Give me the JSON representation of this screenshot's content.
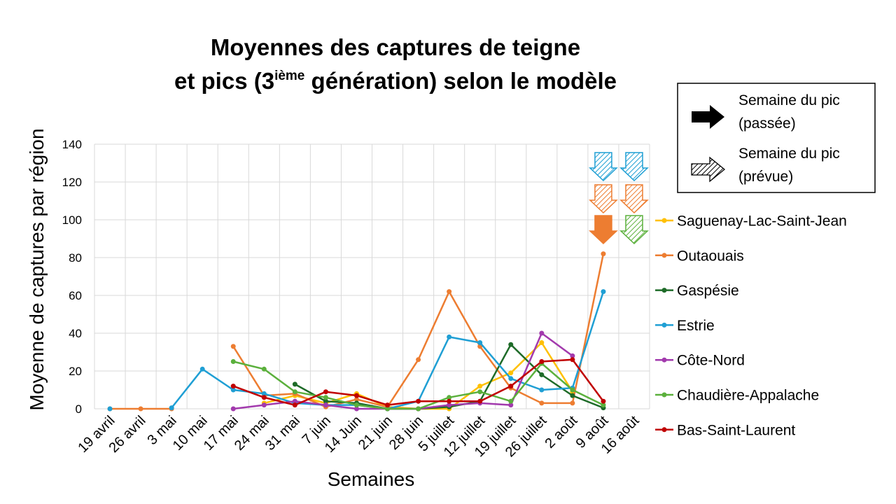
{
  "chart_data": {
    "type": "line",
    "title_line1": "Moyennes des captures de teigne",
    "title_line2_pre": "et pics (3",
    "title_line2_sup": "ième",
    "title_line2_post": " génération) selon le modèle",
    "xlabel": "Semaines",
    "ylabel": "Moyenne de captures par région",
    "ylim": [
      0,
      140
    ],
    "yticks": [
      0,
      20,
      40,
      60,
      80,
      100,
      120,
      140
    ],
    "grid": true,
    "categories": [
      "19 avril",
      "26 avril",
      "3 mai",
      "10 mai",
      "17 mai",
      "24 mai",
      "31 mai",
      "7 juin",
      "14 Juin",
      "21 juin",
      "28 juin",
      "5 juillet",
      "12 juillet",
      "19 juillet",
      "26 juillet",
      "2 août",
      "9 août",
      "16 août"
    ],
    "series": [
      {
        "name": "Saguenay-Lac-Saint-Jean",
        "color": "#FFC000",
        "values": [
          null,
          null,
          null,
          null,
          null,
          3,
          7,
          3,
          8,
          1,
          0,
          0,
          12,
          19,
          35,
          9,
          null,
          null
        ]
      },
      {
        "name": "Outaouais",
        "color": "#ED7D31",
        "values": [
          0,
          0,
          0,
          null,
          33,
          7,
          8,
          1,
          5,
          1,
          26,
          62,
          33,
          11,
          3,
          3,
          82,
          null
        ]
      },
      {
        "name": "Gaspésie",
        "color": "#1E6B28",
        "values": [
          null,
          null,
          null,
          null,
          null,
          null,
          13,
          4,
          3,
          0,
          0,
          1,
          4,
          34,
          18,
          7,
          0.5,
          null
        ]
      },
      {
        "name": "Estrie",
        "color": "#1F9FD4",
        "values": [
          0,
          null,
          0.5,
          21,
          10,
          8,
          3,
          2,
          2,
          0,
          4,
          38,
          35,
          16,
          10,
          11,
          62,
          null
        ]
      },
      {
        "name": "Côte-Nord",
        "color": "#A23AAD",
        "values": [
          null,
          null,
          null,
          null,
          0,
          2,
          4,
          2,
          0,
          0,
          0,
          2,
          3,
          2,
          40,
          28,
          null,
          null
        ]
      },
      {
        "name": "Chaudière-Appalache",
        "color": "#5BB03C",
        "values": [
          null,
          null,
          null,
          null,
          25,
          21,
          9,
          6,
          2,
          0,
          0,
          6,
          9,
          4,
          24,
          10,
          2,
          null
        ]
      },
      {
        "name": "Bas-Saint-Laurent",
        "color": "#C00000",
        "values": [
          null,
          null,
          null,
          null,
          12,
          6,
          2,
          9,
          7,
          2,
          4,
          4,
          4,
          12,
          25,
          26,
          4,
          null
        ]
      }
    ],
    "peak_arrows": [
      {
        "week": "9 août",
        "region": "Estrie",
        "status": "prévue",
        "color": "#1F9FD4",
        "row": 0
      },
      {
        "week": "16 août",
        "region": "Estrie",
        "status": "prévue",
        "color": "#1F9FD4",
        "row": 0
      },
      {
        "week": "9 août",
        "region": "Outaouais",
        "status": "prévue",
        "color": "#ED7D31",
        "row": 1
      },
      {
        "week": "16 août",
        "region": "Outaouais",
        "status": "prévue",
        "color": "#ED7D31",
        "row": 1
      },
      {
        "week": "9 août",
        "region": "Outaouais",
        "status": "passée",
        "color": "#ED7D31",
        "row": 2
      },
      {
        "week": "16 août",
        "region": "Chaudière-Appalache",
        "status": "prévue",
        "color": "#5BB03C",
        "row": 2
      }
    ],
    "key": {
      "past_line1": "Semaine du pic",
      "past_line2": "(passée)",
      "forecast_line1": "Semaine du pic",
      "forecast_line2": "(prévue)"
    }
  }
}
